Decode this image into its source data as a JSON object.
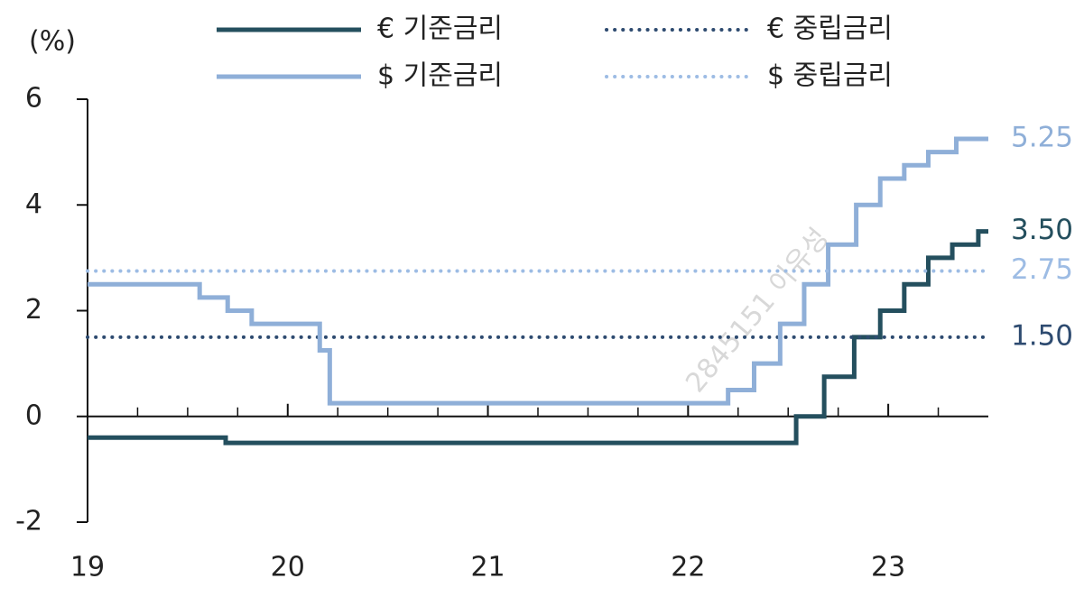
{
  "chart_data": {
    "type": "line",
    "unit": "(%)",
    "watermark": "2845151 이유성",
    "xlim": [
      2019,
      2023.5
    ],
    "ylim": [
      -2,
      6
    ],
    "xticks": [
      {
        "value": 2019,
        "label": "19"
      },
      {
        "value": 2020,
        "label": "20"
      },
      {
        "value": 2021,
        "label": "21"
      },
      {
        "value": 2022,
        "label": "22"
      },
      {
        "value": 2023,
        "label": "23"
      }
    ],
    "yticks": [
      -2,
      0,
      2,
      4,
      6
    ],
    "series": [
      {
        "name": "€ 기준금리",
        "color": "#244f5e",
        "style": "solid",
        "x": [
          2019,
          2019.69,
          2019.69,
          2022.54,
          2022.54,
          2022.68,
          2022.68,
          2022.83,
          2022.83,
          2022.96,
          2022.96,
          2023.08,
          2023.08,
          2023.2,
          2023.2,
          2023.32,
          2023.32,
          2023.45,
          2023.45,
          2023.5
        ],
        "values": [
          -0.4,
          -0.4,
          -0.5,
          -0.5,
          0,
          0,
          0.75,
          0.75,
          1.5,
          1.5,
          2,
          2,
          2.5,
          2.5,
          3,
          3,
          3.25,
          3.25,
          3.5,
          3.5
        ],
        "end_label": "3.50"
      },
      {
        "name": "€ 중립금리",
        "color": "#2e4b70",
        "style": "dotted",
        "x": [
          2019,
          2023.5
        ],
        "values": [
          1.5,
          1.5
        ],
        "end_label": "1.50"
      },
      {
        "name": "$ 기준금리",
        "color": "#8fafd8",
        "style": "solid",
        "x": [
          2019,
          2019.56,
          2019.56,
          2019.7,
          2019.7,
          2019.82,
          2019.82,
          2020.16,
          2020.16,
          2020.21,
          2020.21,
          2022.2,
          2022.2,
          2022.33,
          2022.33,
          2022.46,
          2022.46,
          2022.58,
          2022.58,
          2022.7,
          2022.7,
          2022.84,
          2022.84,
          2022.96,
          2022.96,
          2023.08,
          2023.08,
          2023.2,
          2023.2,
          2023.34,
          2023.34,
          2023.5
        ],
        "values": [
          2.5,
          2.5,
          2.25,
          2.25,
          2,
          2,
          1.75,
          1.75,
          1.25,
          1.25,
          0.25,
          0.25,
          0.5,
          0.5,
          1,
          1,
          1.75,
          1.75,
          2.5,
          2.5,
          3.25,
          3.25,
          4,
          4,
          4.5,
          4.5,
          4.75,
          4.75,
          5,
          5,
          5.25,
          5.25
        ],
        "end_label": "5.25"
      },
      {
        "name": "$ 중립금리",
        "color": "#9dbce4",
        "style": "dotted",
        "x": [
          2019,
          2023.5
        ],
        "values": [
          2.75,
          2.75
        ],
        "end_label": "2.75"
      }
    ]
  }
}
